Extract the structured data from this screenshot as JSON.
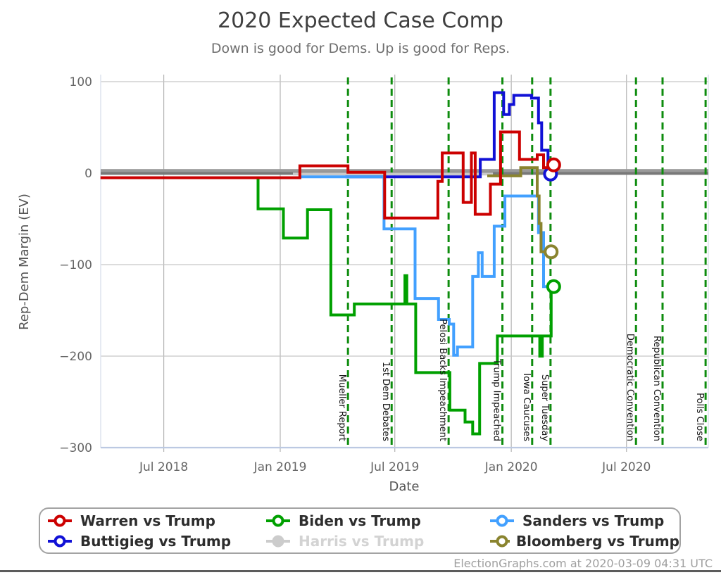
{
  "page": {
    "title": "2020 Expected Case Comp",
    "subtitle": "Down is good for Dems. Up is good for Reps.",
    "footer": "ElectionGraphs.com at 2020-03-09 04:31 UTC"
  },
  "legend": {
    "items": [
      {
        "id": "warren",
        "label": "Warren vs Trump",
        "color": "#cc0000",
        "marker": "open",
        "active": true
      },
      {
        "id": "biden",
        "label": "Biden vs Trump",
        "color": "#00a000",
        "marker": "open",
        "active": true
      },
      {
        "id": "sanders",
        "label": "Sanders vs Trump",
        "color": "#42a0ff",
        "marker": "open",
        "active": true
      },
      {
        "id": "buttigieg",
        "label": "Buttigieg vs Trump",
        "color": "#1111d6",
        "marker": "open",
        "active": true
      },
      {
        "id": "harris",
        "label": "Harris vs Trump",
        "color": "#cccccc",
        "marker": "filled",
        "active": false
      },
      {
        "id": "bloomberg",
        "label": "Bloomberg vs Trump",
        "color": "#8a842f",
        "marker": "open",
        "active": true
      }
    ]
  },
  "chart_data": {
    "type": "line",
    "title": "2020 Expected Case Comp",
    "subtitle": "Down is good for Dems. Up is good for Reps.",
    "xlabel": "Date",
    "ylabel": "Rep-Dem Margin (EV)",
    "ylim": [
      -300,
      100
    ],
    "grid": true,
    "legend_position": "bottom",
    "yticks": [
      {
        "v": 100,
        "label": "100"
      },
      {
        "v": 0,
        "label": "0"
      },
      {
        "v": -100,
        "label": "−100"
      },
      {
        "v": -200,
        "label": "−200"
      },
      {
        "v": -300,
        "label": "−300"
      }
    ],
    "xticks": [
      {
        "date": "2018-07-01",
        "label": "Jul 2018"
      },
      {
        "date": "2019-01-01",
        "label": "Jan 2019"
      },
      {
        "date": "2019-07-01",
        "label": "Jul 2019"
      },
      {
        "date": "2020-01-01",
        "label": "Jan 2020"
      },
      {
        "date": "2020-07-01",
        "label": "Jul 2020"
      }
    ],
    "tie_band_value": 0,
    "tie_band_colors": [
      "#9a9a9a",
      "#787878"
    ],
    "event_line_color": "#0e8c0e",
    "events": [
      {
        "date": "2019-04-18",
        "label": "Mueller Report"
      },
      {
        "date": "2019-06-26",
        "label": "1st Dem Debates"
      },
      {
        "date": "2019-09-24",
        "label": "Pelosi Backs Impeachment"
      },
      {
        "date": "2019-12-18",
        "label": "Trump Impeached"
      },
      {
        "date": "2020-02-03",
        "label": "Iowa Caucuses"
      },
      {
        "date": "2020-03-03",
        "label": "Super Tuesday"
      },
      {
        "date": "2020-07-16",
        "label": "Democratic Convention"
      },
      {
        "date": "2020-08-27",
        "label": "Republican Convention"
      },
      {
        "date": "2020-11-03",
        "label": "Polls Close"
      }
    ],
    "series": [
      {
        "id": "harris",
        "name": "Harris vs Trump",
        "color": "#c9c9c9",
        "marker": "none",
        "end": "2019-12-03",
        "points": [
          {
            "d": "2019-01-21",
            "v": -1
          }
        ]
      },
      {
        "id": "buttigieg",
        "name": "Buttigieg vs Trump",
        "color": "#1111d6",
        "marker": "open",
        "end": "2020-03-03",
        "points": [
          {
            "d": "2019-04-14",
            "v": -4
          },
          {
            "d": "2019-11-13",
            "v": 15
          },
          {
            "d": "2019-12-05",
            "v": 88
          },
          {
            "d": "2019-12-20",
            "v": 64
          },
          {
            "d": "2019-12-29",
            "v": 75
          },
          {
            "d": "2020-01-05",
            "v": 85
          },
          {
            "d": "2020-02-02",
            "v": 82
          },
          {
            "d": "2020-02-13",
            "v": 55
          },
          {
            "d": "2020-02-18",
            "v": 25
          },
          {
            "d": "2020-02-28",
            "v": -1
          }
        ]
      },
      {
        "id": "sanders",
        "name": "Sanders vs Trump",
        "color": "#42a0ff",
        "marker": "none",
        "end": "2020-03-06",
        "points": [
          {
            "d": "2019-02-01",
            "v": -4
          },
          {
            "d": "2019-06-14",
            "v": -61
          },
          {
            "d": "2019-08-02",
            "v": -137
          },
          {
            "d": "2019-09-08",
            "v": -160
          },
          {
            "d": "2019-09-25",
            "v": -165
          },
          {
            "d": "2019-10-02",
            "v": -199
          },
          {
            "d": "2019-10-08",
            "v": -190
          },
          {
            "d": "2019-11-01",
            "v": -113
          },
          {
            "d": "2019-11-10",
            "v": -87
          },
          {
            "d": "2019-11-16",
            "v": -113
          },
          {
            "d": "2019-12-05",
            "v": -58
          },
          {
            "d": "2019-12-22",
            "v": -25
          },
          {
            "d": "2020-02-13",
            "v": -65
          },
          {
            "d": "2020-02-21",
            "v": -124
          }
        ]
      },
      {
        "id": "biden",
        "name": "Biden vs Trump",
        "color": "#00a000",
        "marker": "open",
        "end": "2020-03-08",
        "points": [
          {
            "d": "2018-11-01",
            "v": -5
          },
          {
            "d": "2018-11-27",
            "v": -39
          },
          {
            "d": "2019-01-06",
            "v": -71
          },
          {
            "d": "2019-02-13",
            "v": -40
          },
          {
            "d": "2019-03-22",
            "v": -155
          },
          {
            "d": "2019-04-28",
            "v": -143
          },
          {
            "d": "2019-07-17",
            "v": -112
          },
          {
            "d": "2019-07-20",
            "v": -143
          },
          {
            "d": "2019-08-03",
            "v": -218
          },
          {
            "d": "2019-09-26",
            "v": -259
          },
          {
            "d": "2019-10-20",
            "v": -272
          },
          {
            "d": "2019-11-01",
            "v": -285
          },
          {
            "d": "2019-11-12",
            "v": -208
          },
          {
            "d": "2019-12-10",
            "v": -178
          },
          {
            "d": "2020-02-15",
            "v": -200
          },
          {
            "d": "2020-02-19",
            "v": -178
          },
          {
            "d": "2020-03-04",
            "v": -124
          }
        ]
      },
      {
        "id": "bloomberg",
        "name": "Bloomberg vs Trump",
        "color": "#8a842f",
        "marker": "open",
        "end": "2020-03-04",
        "points": [
          {
            "d": "2019-11-24",
            "v": -3
          },
          {
            "d": "2020-01-16",
            "v": 6
          },
          {
            "d": "2020-02-11",
            "v": -25
          },
          {
            "d": "2020-02-14",
            "v": -55
          },
          {
            "d": "2020-02-17",
            "v": -86
          }
        ]
      },
      {
        "id": "warren",
        "name": "Warren vs Trump",
        "color": "#cc0000",
        "marker": "open",
        "end": "2020-03-08",
        "points": [
          {
            "d": "2018-03-23",
            "v": -5
          },
          {
            "d": "2019-02-01",
            "v": 8
          },
          {
            "d": "2019-04-18",
            "v": 1
          },
          {
            "d": "2019-06-15",
            "v": -49
          },
          {
            "d": "2019-09-07",
            "v": -9
          },
          {
            "d": "2019-09-14",
            "v": 22
          },
          {
            "d": "2019-10-17",
            "v": -32
          },
          {
            "d": "2019-10-30",
            "v": 22
          },
          {
            "d": "2019-11-05",
            "v": -45
          },
          {
            "d": "2019-11-29",
            "v": -12
          },
          {
            "d": "2019-12-15",
            "v": 45
          },
          {
            "d": "2020-01-14",
            "v": 15
          },
          {
            "d": "2020-02-11",
            "v": 20
          },
          {
            "d": "2020-02-21",
            "v": 6
          },
          {
            "d": "2020-03-02",
            "v": 9
          }
        ]
      }
    ]
  }
}
